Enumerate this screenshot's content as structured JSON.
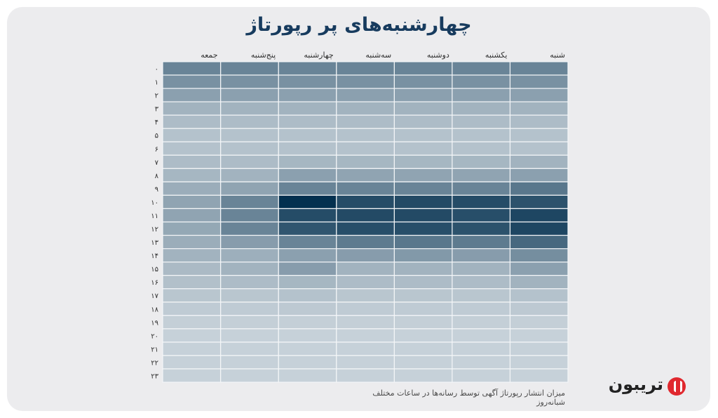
{
  "title": "چهارشنبه‌های پر رپورتاژ",
  "caption": "میزان انتشار رپورتاژ آگهی توسط رسانه‌ها در ساعات مختلف شبانه‌روز",
  "brand": {
    "name": "تریبون",
    "logo_color": "#e0282e"
  },
  "colors": {
    "low": "#e6ebef",
    "high": "#03304f",
    "card": "#ececee"
  },
  "chart_data": {
    "type": "heatmap",
    "title": "چهارشنبه‌های پر رپورتاژ",
    "columns": [
      "شنبه",
      "یکشنبه",
      "دوشنبه",
      "سه‌شنبه",
      "چهارشنبه",
      "پنج‌شنبه",
      "جمعه"
    ],
    "rows": [
      "۰",
      "۱",
      "۲",
      "۳",
      "۴",
      "۵",
      "۶",
      "۷",
      "۸",
      "۹",
      "۱۰",
      "۱۱",
      "۱۲",
      "۱۳",
      "۱۴",
      "۱۵",
      "۱۶",
      "۱۷",
      "۱۸",
      "۱۹",
      "۲۰",
      "۲۱",
      "۲۲",
      "۲۳"
    ],
    "values": [
      [
        0.55,
        0.55,
        0.55,
        0.55,
        0.55,
        0.55,
        0.55
      ],
      [
        0.48,
        0.48,
        0.48,
        0.48,
        0.48,
        0.48,
        0.48
      ],
      [
        0.4,
        0.4,
        0.4,
        0.4,
        0.4,
        0.4,
        0.4
      ],
      [
        0.3,
        0.3,
        0.3,
        0.3,
        0.3,
        0.3,
        0.3
      ],
      [
        0.25,
        0.25,
        0.25,
        0.25,
        0.25,
        0.25,
        0.25
      ],
      [
        0.22,
        0.22,
        0.22,
        0.22,
        0.22,
        0.22,
        0.22
      ],
      [
        0.22,
        0.22,
        0.22,
        0.22,
        0.22,
        0.22,
        0.22
      ],
      [
        0.3,
        0.28,
        0.28,
        0.28,
        0.28,
        0.25,
        0.25
      ],
      [
        0.4,
        0.38,
        0.38,
        0.38,
        0.4,
        0.3,
        0.28
      ],
      [
        0.62,
        0.55,
        0.55,
        0.55,
        0.55,
        0.38,
        0.33
      ],
      [
        0.82,
        0.85,
        0.86,
        0.85,
        1.0,
        0.55,
        0.38
      ],
      [
        0.88,
        0.84,
        0.86,
        0.86,
        0.85,
        0.55,
        0.38
      ],
      [
        0.88,
        0.82,
        0.84,
        0.84,
        0.8,
        0.55,
        0.36
      ],
      [
        0.7,
        0.6,
        0.62,
        0.6,
        0.55,
        0.42,
        0.33
      ],
      [
        0.5,
        0.42,
        0.44,
        0.42,
        0.4,
        0.32,
        0.3
      ],
      [
        0.4,
        0.3,
        0.3,
        0.3,
        0.42,
        0.3,
        0.26
      ],
      [
        0.3,
        0.25,
        0.25,
        0.25,
        0.28,
        0.25,
        0.23
      ],
      [
        0.22,
        0.2,
        0.2,
        0.2,
        0.22,
        0.2,
        0.2
      ],
      [
        0.18,
        0.17,
        0.17,
        0.17,
        0.18,
        0.17,
        0.17
      ],
      [
        0.15,
        0.15,
        0.15,
        0.15,
        0.15,
        0.15,
        0.15
      ],
      [
        0.14,
        0.14,
        0.14,
        0.14,
        0.14,
        0.14,
        0.14
      ],
      [
        0.14,
        0.14,
        0.14,
        0.14,
        0.14,
        0.14,
        0.14
      ],
      [
        0.14,
        0.14,
        0.14,
        0.14,
        0.14,
        0.14,
        0.14
      ],
      [
        0.14,
        0.14,
        0.14,
        0.14,
        0.14,
        0.14,
        0.14
      ]
    ],
    "grid": true,
    "legend": "none"
  }
}
